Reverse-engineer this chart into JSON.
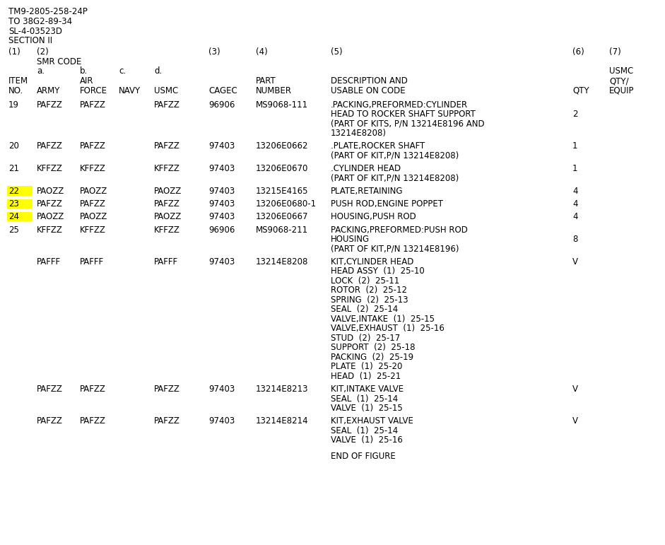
{
  "bg_color": "#ffffff",
  "font_family": "Courier New",
  "font_size": 8.5,
  "header_lines": [
    "TM9-2805-258-24P",
    "TO 38G2-89-34",
    "SL-4-03523D",
    "SECTION II"
  ],
  "rows": [
    {
      "item": "19",
      "army": "PAFZZ",
      "airforce": "PAFZZ",
      "navy": "",
      "usmc": "PAFZZ",
      "cagec": "96906",
      "partnum": "MS9068-111",
      "desc": [
        ".PACKING,PREFORMED:CYLINDER",
        "HEAD TO ROCKER SHAFT SUPPORT",
        "(PART OF KITS, P/N 13214E8196 AND",
        "13214E8208)"
      ],
      "qty": "2",
      "qty_line": 1,
      "highlight": false
    },
    {
      "item": "20",
      "army": "PAFZZ",
      "airforce": "PAFZZ",
      "navy": "",
      "usmc": "PAFZZ",
      "cagec": "97403",
      "partnum": "13206E0662",
      "desc": [
        ".PLATE,ROCKER SHAFT",
        "(PART OF KIT,P/N 13214E8208)"
      ],
      "qty": "1",
      "qty_line": 0,
      "highlight": false
    },
    {
      "item": "21",
      "army": "KFFZZ",
      "airforce": "KFFZZ",
      "navy": "",
      "usmc": "KFFZZ",
      "cagec": "97403",
      "partnum": "13206E0670",
      "desc": [
        ".CYLINDER HEAD",
        "(PART OF KIT,P/N 13214E8208)"
      ],
      "qty": "1",
      "qty_line": 0,
      "highlight": false
    },
    {
      "item": "22",
      "army": "PAOZZ",
      "airforce": "PAOZZ",
      "navy": "",
      "usmc": "PAOZZ",
      "cagec": "97403",
      "partnum": "13215E4165",
      "desc": [
        "PLATE,RETAINING"
      ],
      "qty": "4",
      "qty_line": 0,
      "highlight": true
    },
    {
      "item": "23",
      "army": "PAFZZ",
      "airforce": "PAFZZ",
      "navy": "",
      "usmc": "PAFZZ",
      "cagec": "97403",
      "partnum": "13206E0680-1",
      "desc": [
        "PUSH ROD,ENGINE POPPET"
      ],
      "qty": "4",
      "qty_line": 0,
      "highlight": true
    },
    {
      "item": "24",
      "army": "PAOZZ",
      "airforce": "PAOZZ",
      "navy": "",
      "usmc": "PAOZZ",
      "cagec": "97403",
      "partnum": "13206E0667",
      "desc": [
        "HOUSING,PUSH ROD"
      ],
      "qty": "4",
      "qty_line": 0,
      "highlight": true
    },
    {
      "item": "25",
      "army": "KFFZZ",
      "airforce": "KFFZZ",
      "navy": "",
      "usmc": "KFFZZ",
      "cagec": "96906",
      "partnum": "MS9068-211",
      "desc": [
        "PACKING,PREFORMED:PUSH ROD",
        "HOUSING",
        "(PART OF KIT,P/N 13214E8196)"
      ],
      "qty": "8",
      "qty_line": 1,
      "highlight": false
    },
    {
      "item": "",
      "army": "PAFFF",
      "airforce": "PAFFF",
      "navy": "",
      "usmc": "PAFFF",
      "cagec": "97403",
      "partnum": "13214E8208",
      "desc": [
        "KIT,CYLINDER HEAD",
        "HEAD ASSY  (1)  25-10",
        "LOCK  (2)  25-11",
        "ROTOR  (2)  25-12",
        "SPRING  (2)  25-13",
        "SEAL  (2)  25-14",
        "VALVE,INTAKE  (1)  25-15",
        "VALVE,EXHAUST  (1)  25-16",
        "STUD  (2)  25-17",
        "SUPPORT  (2)  25-18",
        "PACKING  (2)  25-19",
        "PLATE  (1)  25-20",
        "HEAD  (1)  25-21"
      ],
      "qty": "V",
      "qty_line": 0,
      "highlight": false
    },
    {
      "item": "",
      "army": "PAFZZ",
      "airforce": "PAFZZ",
      "navy": "",
      "usmc": "PAFZZ",
      "cagec": "97403",
      "partnum": "13214E8213",
      "desc": [
        "KIT,INTAKE VALVE",
        "SEAL  (1)  25-14",
        "VALVE  (1)  25-15"
      ],
      "qty": "V",
      "qty_line": 0,
      "highlight": false
    },
    {
      "item": "",
      "army": "PAFZZ",
      "airforce": "PAFZZ",
      "navy": "",
      "usmc": "PAFZZ",
      "cagec": "97403",
      "partnum": "13214E8214",
      "desc": [
        "KIT,EXHAUST VALVE",
        "SEAL  (1)  25-14",
        "VALVE  (1)  25-16"
      ],
      "qty": "V",
      "qty_line": 0,
      "highlight": false
    }
  ],
  "footer": "END OF FIGURE",
  "highlight_color": "#ffff00",
  "text_color": "#000000"
}
